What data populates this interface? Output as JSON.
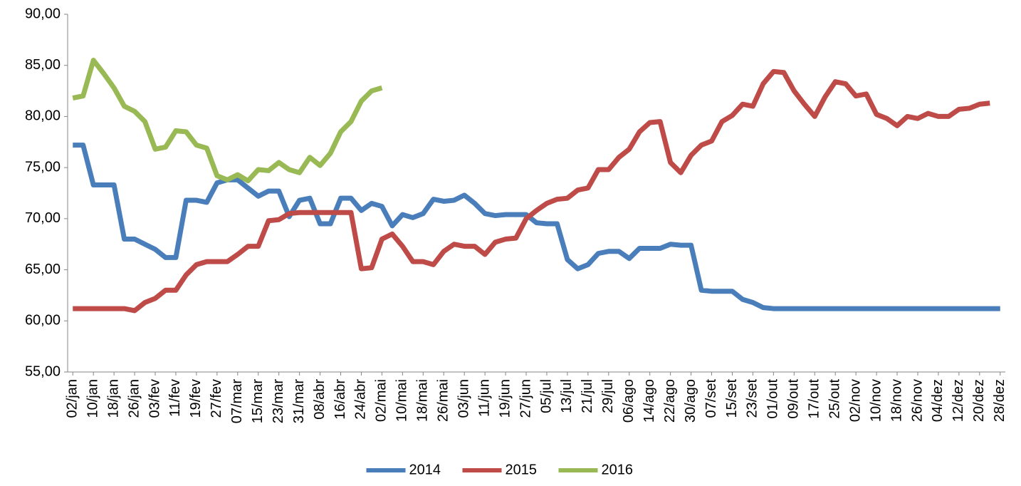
{
  "chart_data": {
    "type": "line",
    "categories": [
      "02/jan",
      null,
      "10/jan",
      null,
      "18/jan",
      null,
      "26/jan",
      null,
      "03/fev",
      null,
      "11/fev",
      null,
      "19/fev",
      null,
      "27/fev",
      null,
      "07/mar",
      null,
      "15/mar",
      null,
      "23/mar",
      null,
      "31/mar",
      null,
      "08/abr",
      null,
      "16/abr",
      null,
      "24/abr",
      null,
      "02/mai",
      null,
      "10/mai",
      null,
      "18/mai",
      null,
      "26/mai",
      null,
      "03/jun",
      null,
      "11/jun",
      null,
      "19/jun",
      null,
      "27/jun",
      null,
      "05/jul",
      null,
      "13/jul",
      null,
      "21/jul",
      null,
      "29/jul",
      null,
      "06/ago",
      null,
      "14/ago",
      null,
      "22/ago",
      null,
      "30/ago",
      null,
      "07/set",
      null,
      "15/set",
      null,
      "23/set",
      null,
      "01/out",
      null,
      "09/out",
      null,
      "17/out",
      null,
      "25/out",
      null,
      "02/nov",
      null,
      "10/nov",
      null,
      "18/nov",
      null,
      "26/nov",
      null,
      "04/dez",
      null,
      "12/dez",
      null,
      "20/dez",
      null,
      "28/dez"
    ],
    "series": [
      {
        "name": "2014",
        "color": "#4a7ebb",
        "values": [
          77.2,
          77.2,
          73.3,
          73.3,
          73.3,
          68,
          68,
          67.5,
          67,
          66.2,
          66.2,
          71.8,
          71.8,
          71.6,
          73.5,
          73.8,
          73.8,
          73,
          72.2,
          72.7,
          72.7,
          70.2,
          71.8,
          72,
          69.5,
          69.5,
          72,
          72,
          70.8,
          71.5,
          71.2,
          69.3,
          70.4,
          70.1,
          70.5,
          71.9,
          71.7,
          71.8,
          72.3,
          71.5,
          70.5,
          70.3,
          70.4,
          70.4,
          70.4,
          69.6,
          69.5,
          69.5,
          66,
          65.1,
          65.5,
          66.6,
          66.8,
          66.8,
          66.1,
          67.1,
          67.1,
          67.1,
          67.5,
          67.4,
          67.4,
          63,
          62.9,
          62.9,
          62.9,
          62.1,
          61.8,
          61.3,
          61.2,
          61.2,
          61.2,
          61.2,
          61.2,
          61.2,
          61.2,
          61.2,
          61.2,
          61.2,
          61.2,
          61.2,
          61.2,
          61.2,
          61.2,
          61.2,
          61.2,
          61.2,
          61.2,
          61.2,
          61.2,
          61.2,
          61.2
        ]
      },
      {
        "name": "2015",
        "color": "#be4b48",
        "values": [
          61.2,
          61.2,
          61.2,
          61.2,
          61.2,
          61.2,
          61,
          61.8,
          62.2,
          63,
          63,
          64.5,
          65.5,
          65.8,
          65.8,
          65.8,
          66.5,
          67.3,
          67.3,
          69.8,
          69.9,
          70.5,
          70.6,
          70.6,
          70.6,
          70.6,
          70.6,
          70.6,
          65.1,
          65.2,
          68,
          68.5,
          67.3,
          65.8,
          65.8,
          65.5,
          66.8,
          67.5,
          67.3,
          67.3,
          66.5,
          67.7,
          68,
          68.1,
          70,
          70.8,
          71.5,
          71.9,
          72,
          72.8,
          73,
          74.8,
          74.8,
          76,
          76.8,
          78.5,
          79.4,
          79.5,
          75.5,
          74.5,
          76.2,
          77.2,
          77.6,
          79.5,
          80.1,
          81.2,
          81,
          83.2,
          84.4,
          84.3,
          82.5,
          81.2,
          80,
          81.9,
          83.4,
          83.2,
          82,
          82.2,
          80.2,
          79.8,
          79.1,
          80,
          79.8,
          80.3,
          80,
          80,
          80.7,
          80.8,
          81.2,
          81.3,
          null
        ]
      },
      {
        "name": "2016",
        "color": "#98b954",
        "values": [
          81.8,
          82,
          85.5,
          84.2,
          82.8,
          81,
          80.5,
          79.5,
          76.8,
          77,
          78.6,
          78.5,
          77.2,
          76.9,
          74.2,
          73.8,
          74.3,
          73.7,
          74.8,
          74.7,
          75.5,
          74.8,
          74.5,
          76,
          75.2,
          76.4,
          78.5,
          79.5,
          81.5,
          82.5,
          82.8,
          null,
          null,
          null,
          null,
          null,
          null,
          null,
          null,
          null,
          null,
          null,
          null,
          null,
          null,
          null,
          null,
          null,
          null,
          null,
          null,
          null,
          null,
          null,
          null,
          null,
          null,
          null,
          null,
          null,
          null,
          null,
          null,
          null,
          null,
          null,
          null,
          null,
          null,
          null,
          null,
          null,
          null,
          null,
          null,
          null,
          null,
          null,
          null,
          null,
          null,
          null,
          null,
          null,
          null,
          null,
          null,
          null,
          null,
          null,
          null
        ]
      }
    ],
    "ylim": [
      55,
      90
    ],
    "yticks": [
      {
        "value": 55,
        "label": "55,00"
      },
      {
        "value": 60,
        "label": "60,00"
      },
      {
        "value": 65,
        "label": "65,00"
      },
      {
        "value": 70,
        "label": "70,00"
      },
      {
        "value": 75,
        "label": "75,00"
      },
      {
        "value": 80,
        "label": "80,00"
      },
      {
        "value": 85,
        "label": "85,00"
      },
      {
        "value": 90,
        "label": "90,00"
      }
    ],
    "legend": "bottom"
  }
}
